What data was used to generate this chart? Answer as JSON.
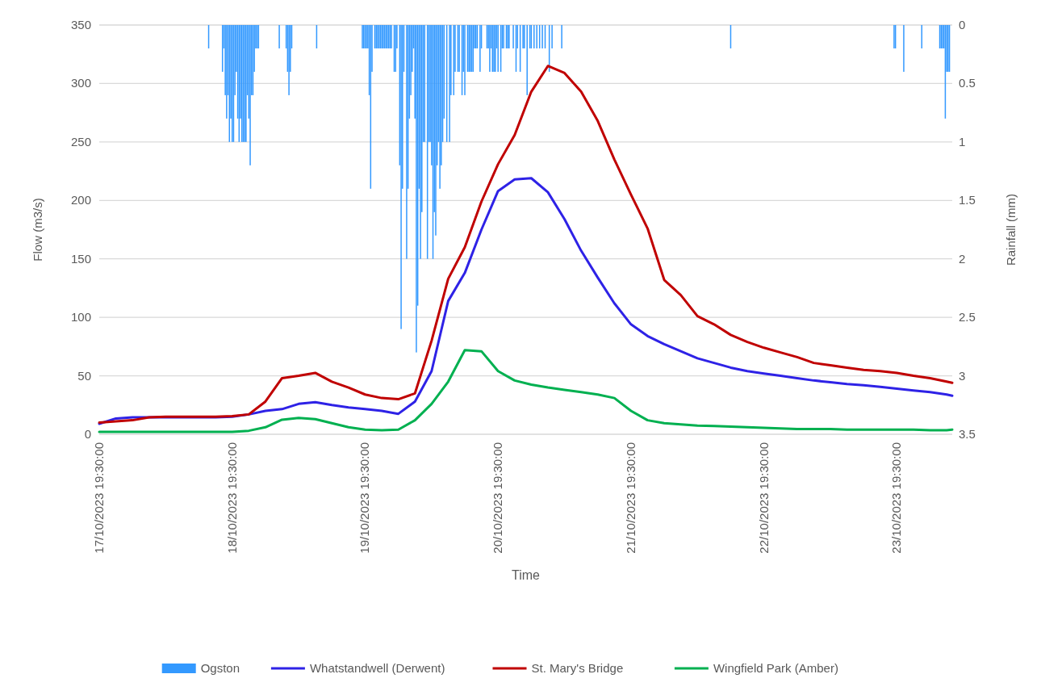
{
  "chart_data": {
    "type": "line",
    "xlabel": "Time",
    "ylabel": "Flow (m3/s)",
    "y2label": "Rainfall (mm)",
    "grid": "y",
    "legend": "bottom",
    "line_style": "solid",
    "marker": "none",
    "xlim": [
      "2023-10-17T19:30",
      "2023-10-24T05:30"
    ],
    "xticks": [
      {
        "value": "2023-10-17T19:30",
        "label": "17/10/2023 19:30:00"
      },
      {
        "value": "2023-10-18T19:30",
        "label": "18/10/2023 19:30:00"
      },
      {
        "value": "2023-10-19T19:30",
        "label": "19/10/2023 19:30:00"
      },
      {
        "value": "2023-10-20T19:30",
        "label": "20/10/2023 19:30:00"
      },
      {
        "value": "2023-10-21T19:30",
        "label": "21/10/2023 19:30:00"
      },
      {
        "value": "2023-10-22T19:30",
        "label": "22/10/2023 19:30:00"
      },
      {
        "value": "2023-10-23T19:30",
        "label": "23/10/2023 19:30:00"
      }
    ],
    "ylim": [
      0,
      350
    ],
    "yticks": [
      0,
      50,
      100,
      150,
      200,
      250,
      300,
      350
    ],
    "y2lim": [
      3.5,
      0
    ],
    "y2ticks": [
      0,
      0.5,
      1,
      1.5,
      2,
      2.5,
      3,
      3.5
    ],
    "x": [
      "2023-10-17T19:30",
      "2023-10-17T22:30",
      "2023-10-18T01:30",
      "2023-10-18T04:30",
      "2023-10-18T07:30",
      "2023-10-18T10:30",
      "2023-10-18T13:30",
      "2023-10-18T16:30",
      "2023-10-18T19:30",
      "2023-10-18T22:30",
      "2023-10-19T01:30",
      "2023-10-19T04:30",
      "2023-10-19T07:30",
      "2023-10-19T10:30",
      "2023-10-19T13:30",
      "2023-10-19T16:30",
      "2023-10-19T19:30",
      "2023-10-19T22:30",
      "2023-10-20T01:30",
      "2023-10-20T04:30",
      "2023-10-20T07:30",
      "2023-10-20T10:30",
      "2023-10-20T13:30",
      "2023-10-20T16:30",
      "2023-10-20T19:30",
      "2023-10-20T22:30",
      "2023-10-21T01:30",
      "2023-10-21T04:30",
      "2023-10-21T07:30",
      "2023-10-21T10:30",
      "2023-10-21T13:30",
      "2023-10-21T16:30",
      "2023-10-21T19:30",
      "2023-10-21T22:30",
      "2023-10-22T01:30",
      "2023-10-22T04:30",
      "2023-10-22T07:30",
      "2023-10-22T10:30",
      "2023-10-22T13:30",
      "2023-10-22T16:30",
      "2023-10-22T19:30",
      "2023-10-22T22:30",
      "2023-10-23T01:30",
      "2023-10-23T04:30",
      "2023-10-23T07:30",
      "2023-10-23T10:30",
      "2023-10-23T13:30",
      "2023-10-23T16:30",
      "2023-10-23T19:30",
      "2023-10-23T22:30",
      "2023-10-24T01:30",
      "2023-10-24T04:30",
      "2023-10-24T05:30"
    ],
    "series": [
      {
        "name": "Ogston",
        "type": "bar",
        "axis": "y2",
        "color": "#3399ff",
        "x": [
          "2023-10-18T15:15",
          "2023-10-18T17:45",
          "2023-10-18T18:00",
          "2023-10-18T18:15",
          "2023-10-18T18:30",
          "2023-10-18T18:45",
          "2023-10-18T19:00",
          "2023-10-18T19:15",
          "2023-10-18T19:30",
          "2023-10-18T19:45",
          "2023-10-18T20:00",
          "2023-10-18T20:15",
          "2023-10-18T20:30",
          "2023-10-18T20:45",
          "2023-10-18T21:00",
          "2023-10-18T21:15",
          "2023-10-18T21:30",
          "2023-10-18T21:45",
          "2023-10-18T22:00",
          "2023-10-18T22:15",
          "2023-10-18T22:30",
          "2023-10-18T22:45",
          "2023-10-18T23:00",
          "2023-10-18T23:15",
          "2023-10-18T23:30",
          "2023-10-18T23:45",
          "2023-10-19T00:00",
          "2023-10-19T00:15",
          "2023-10-19T04:00",
          "2023-10-19T05:15",
          "2023-10-19T05:30",
          "2023-10-19T05:45",
          "2023-10-19T06:00",
          "2023-10-19T06:15",
          "2023-10-19T10:45",
          "2023-10-19T19:00",
          "2023-10-19T19:15",
          "2023-10-19T19:30",
          "2023-10-19T19:45",
          "2023-10-19T20:00",
          "2023-10-19T20:15",
          "2023-10-19T20:30",
          "2023-10-19T20:45",
          "2023-10-19T21:15",
          "2023-10-19T21:30",
          "2023-10-19T21:45",
          "2023-10-19T22:00",
          "2023-10-19T22:15",
          "2023-10-19T22:30",
          "2023-10-19T22:45",
          "2023-10-19T23:00",
          "2023-10-19T23:15",
          "2023-10-19T23:30",
          "2023-10-19T23:45",
          "2023-10-20T00:00",
          "2023-10-20T00:15",
          "2023-10-20T00:45",
          "2023-10-20T01:00",
          "2023-10-20T01:15",
          "2023-10-20T01:45",
          "2023-10-20T02:00",
          "2023-10-20T02:15",
          "2023-10-20T02:30",
          "2023-10-20T03:00",
          "2023-10-20T03:15",
          "2023-10-20T03:30",
          "2023-10-20T03:45",
          "2023-10-20T04:00",
          "2023-10-20T04:15",
          "2023-10-20T04:30",
          "2023-10-20T04:45",
          "2023-10-20T05:00",
          "2023-10-20T05:15",
          "2023-10-20T05:30",
          "2023-10-20T05:45",
          "2023-10-20T06:00",
          "2023-10-20T06:15",
          "2023-10-20T06:45",
          "2023-10-20T07:00",
          "2023-10-20T07:15",
          "2023-10-20T07:30",
          "2023-10-20T07:45",
          "2023-10-20T08:00",
          "2023-10-20T08:15",
          "2023-10-20T08:30",
          "2023-10-20T08:45",
          "2023-10-20T09:00",
          "2023-10-20T09:15",
          "2023-10-20T09:30",
          "2023-10-20T09:45",
          "2023-10-20T10:15",
          "2023-10-20T10:45",
          "2023-10-20T11:00",
          "2023-10-20T11:30",
          "2023-10-20T11:45",
          "2023-10-20T12:15",
          "2023-10-20T12:30",
          "2023-10-20T13:00",
          "2023-10-20T13:15",
          "2023-10-20T13:30",
          "2023-10-20T14:00",
          "2023-10-20T14:15",
          "2023-10-20T14:30",
          "2023-10-20T14:45",
          "2023-10-20T15:00",
          "2023-10-20T15:15",
          "2023-10-20T15:30",
          "2023-10-20T15:45",
          "2023-10-20T16:15",
          "2023-10-20T16:30",
          "2023-10-20T17:30",
          "2023-10-20T17:45",
          "2023-10-20T18:00",
          "2023-10-20T18:15",
          "2023-10-20T18:30",
          "2023-10-20T18:45",
          "2023-10-20T19:00",
          "2023-10-20T19:15",
          "2023-10-20T19:30",
          "2023-10-20T20:00",
          "2023-10-20T20:15",
          "2023-10-20T20:30",
          "2023-10-20T21:00",
          "2023-10-20T21:15",
          "2023-10-20T21:30",
          "2023-10-20T22:15",
          "2023-10-20T22:45",
          "2023-10-20T23:00",
          "2023-10-20T23:30",
          "2023-10-21T00:00",
          "2023-10-21T00:15",
          "2023-10-21T00:45",
          "2023-10-21T01:15",
          "2023-10-21T01:30",
          "2023-10-21T02:00",
          "2023-10-21T02:30",
          "2023-10-21T03:00",
          "2023-10-21T03:30",
          "2023-10-21T04:00",
          "2023-10-21T04:45",
          "2023-10-21T05:15",
          "2023-10-21T07:00",
          "2023-10-22T13:30",
          "2023-10-23T19:00",
          "2023-10-23T19:15",
          "2023-10-23T20:45",
          "2023-10-24T00:00",
          "2023-10-24T03:15",
          "2023-10-24T03:30",
          "2023-10-24T03:45",
          "2023-10-24T04:00",
          "2023-10-24T04:15",
          "2023-10-24T04:30",
          "2023-10-24T04:45",
          "2023-10-24T05:00"
        ],
        "values": [
          0.2,
          0.4,
          0.2,
          0.6,
          0.8,
          0.6,
          1.0,
          0.8,
          1.0,
          1.0,
          0.6,
          0.4,
          0.8,
          1.0,
          0.8,
          1.0,
          1.0,
          1.0,
          1.0,
          0.6,
          0.8,
          1.2,
          0.6,
          0.6,
          0.4,
          0.2,
          0.2,
          0.2,
          0.2,
          0.2,
          0.4,
          0.6,
          0.4,
          0.2,
          0.2,
          0.2,
          0.2,
          0.2,
          0.2,
          0.2,
          0.6,
          1.4,
          0.4,
          0.2,
          0.2,
          0.2,
          0.2,
          0.2,
          0.2,
          0.2,
          0.2,
          0.2,
          0.2,
          0.2,
          0.2,
          0.2,
          0.4,
          0.4,
          0.2,
          1.2,
          2.6,
          1.4,
          0.4,
          2.0,
          1.4,
          0.8,
          0.6,
          0.4,
          0.2,
          0.8,
          2.8,
          2.4,
          1.4,
          2.0,
          1.6,
          1.0,
          1.0,
          2.0,
          1.0,
          1.0,
          1.2,
          2.0,
          1.6,
          1.8,
          1.2,
          1.0,
          1.4,
          1.2,
          1.0,
          0.8,
          1.0,
          1.0,
          0.6,
          0.6,
          0.4,
          0.4,
          0.4,
          0.6,
          0.4,
          0.6,
          0.4,
          0.4,
          0.4,
          0.4,
          0.4,
          0.2,
          0.2,
          0.2,
          0.4,
          0.2,
          0.2,
          0.2,
          0.4,
          0.2,
          0.4,
          0.4,
          0.4,
          0.2,
          0.4,
          0.4,
          0.2,
          0.2,
          0.2,
          0.2,
          0.2,
          0.2,
          0.4,
          0.2,
          0.4,
          0.2,
          0.2,
          0.6,
          0.2,
          0.2,
          0.2,
          0.2,
          0.2,
          0.2,
          0.2,
          0.4,
          0.2,
          0.2,
          0.2,
          0.2,
          0.2,
          0.4,
          0.2,
          0.2,
          0.2,
          0.2,
          0.2,
          0.8,
          0.4,
          0.4,
          0.4
        ]
      },
      {
        "name": "Whatstandwell (Derwent)",
        "color": "#2e22e6",
        "values": [
          9,
          13.5,
          14.5,
          14.5,
          14.5,
          14.5,
          14.5,
          14.5,
          15,
          17,
          20,
          21.5,
          26,
          27.5,
          25,
          23,
          21.5,
          20,
          17.5,
          28,
          54,
          114,
          138,
          175,
          208,
          218,
          219,
          207,
          184,
          157,
          134,
          112,
          94,
          84,
          77,
          71,
          65,
          61,
          57,
          54,
          52,
          50,
          48,
          46,
          44.5,
          43,
          42,
          40.5,
          39,
          37.5,
          36,
          34,
          33
        ]
      },
      {
        "name": "St. Mary's Bridge",
        "color": "#c00000",
        "values": [
          10,
          11,
          12,
          14.5,
          15,
          15,
          15,
          15,
          15.5,
          17,
          28,
          48,
          50,
          52.5,
          45,
          40,
          34,
          31,
          30,
          35,
          80,
          133,
          160,
          199,
          231,
          256,
          293,
          315,
          309,
          293,
          268,
          235,
          205,
          176,
          132,
          119,
          101,
          94,
          85,
          79,
          74,
          70,
          66,
          61,
          59,
          57,
          55,
          54,
          52.5,
          50,
          48,
          45,
          44
        ]
      },
      {
        "name": "Wingfield Park (Amber)",
        "color": "#00b050",
        "values": [
          2,
          2,
          2,
          2,
          2,
          2,
          2,
          2,
          2,
          3,
          6,
          12.5,
          14,
          13,
          9.5,
          6,
          4,
          3.5,
          4,
          12,
          26,
          45,
          72,
          71,
          54,
          46,
          42.5,
          40,
          38,
          36,
          34,
          31,
          20,
          12,
          9.5,
          8.5,
          7.5,
          7,
          6.5,
          6,
          5.5,
          5,
          4.5,
          4.5,
          4.5,
          4,
          4,
          4,
          4,
          4,
          3.5,
          3.5,
          4
        ]
      }
    ]
  }
}
